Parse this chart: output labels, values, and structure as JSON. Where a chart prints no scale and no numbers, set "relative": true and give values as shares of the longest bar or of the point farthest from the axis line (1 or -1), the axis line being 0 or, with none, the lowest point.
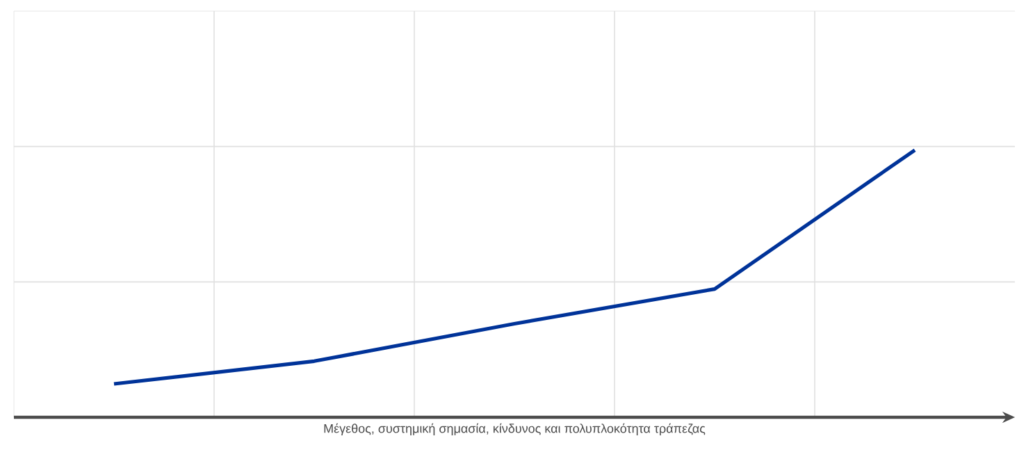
{
  "chart_data": {
    "type": "line",
    "relative": true,
    "xlabel": "Μέγεθος, συστημική σημασία, κίνδυνος και πολυπλοκότητα τράπεζας",
    "categories": [
      null,
      null,
      null,
      null,
      null
    ],
    "series": [
      {
        "color": "#003399",
        "values": [
          0.125,
          0.21,
          0.35,
          0.48,
          1
        ]
      }
    ],
    "grid": true,
    "marker": "none",
    "line_style": "solid"
  }
}
